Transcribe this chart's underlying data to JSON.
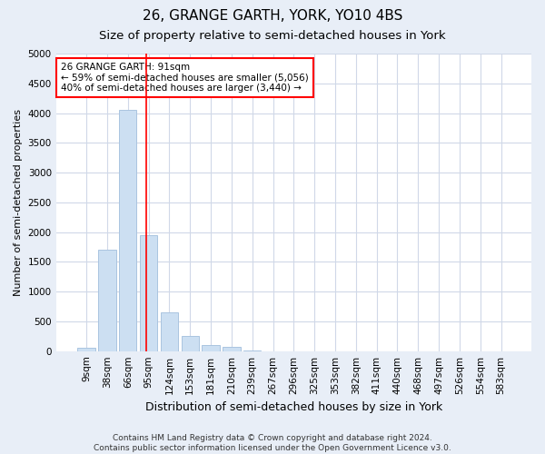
{
  "title": "26, GRANGE GARTH, YORK, YO10 4BS",
  "subtitle": "Size of property relative to semi-detached houses in York",
  "xlabel": "Distribution of semi-detached houses by size in York",
  "ylabel": "Number of semi-detached properties",
  "bar_labels": [
    "9sqm",
    "38sqm",
    "66sqm",
    "95sqm",
    "124sqm",
    "153sqm",
    "181sqm",
    "210sqm",
    "239sqm",
    "267sqm",
    "296sqm",
    "325sqm",
    "353sqm",
    "382sqm",
    "411sqm",
    "440sqm",
    "468sqm",
    "497sqm",
    "526sqm",
    "554sqm",
    "583sqm"
  ],
  "bar_values": [
    50,
    1700,
    4050,
    1950,
    650,
    250,
    100,
    75,
    10,
    0,
    0,
    0,
    0,
    0,
    0,
    0,
    0,
    0,
    0,
    0,
    0
  ],
  "bar_color": "#ccdff2",
  "bar_edgecolor": "#aac4e0",
  "redline_x": 2.88,
  "annotation_text": "26 GRANGE GARTH: 91sqm\n← 59% of semi-detached houses are smaller (5,056)\n40% of semi-detached houses are larger (3,440) →",
  "ylim": [
    0,
    5000
  ],
  "yticks": [
    0,
    500,
    1000,
    1500,
    2000,
    2500,
    3000,
    3500,
    4000,
    4500,
    5000
  ],
  "footer": "Contains HM Land Registry data © Crown copyright and database right 2024.\nContains public sector information licensed under the Open Government Licence v3.0.",
  "fig_bg_color": "#e8eef7",
  "plot_bg_color": "#ffffff",
  "grid_color": "#d0d8e8",
  "title_fontsize": 11,
  "subtitle_fontsize": 9.5,
  "tick_fontsize": 7.5,
  "ylabel_fontsize": 8,
  "xlabel_fontsize": 9,
  "footer_fontsize": 6.5
}
